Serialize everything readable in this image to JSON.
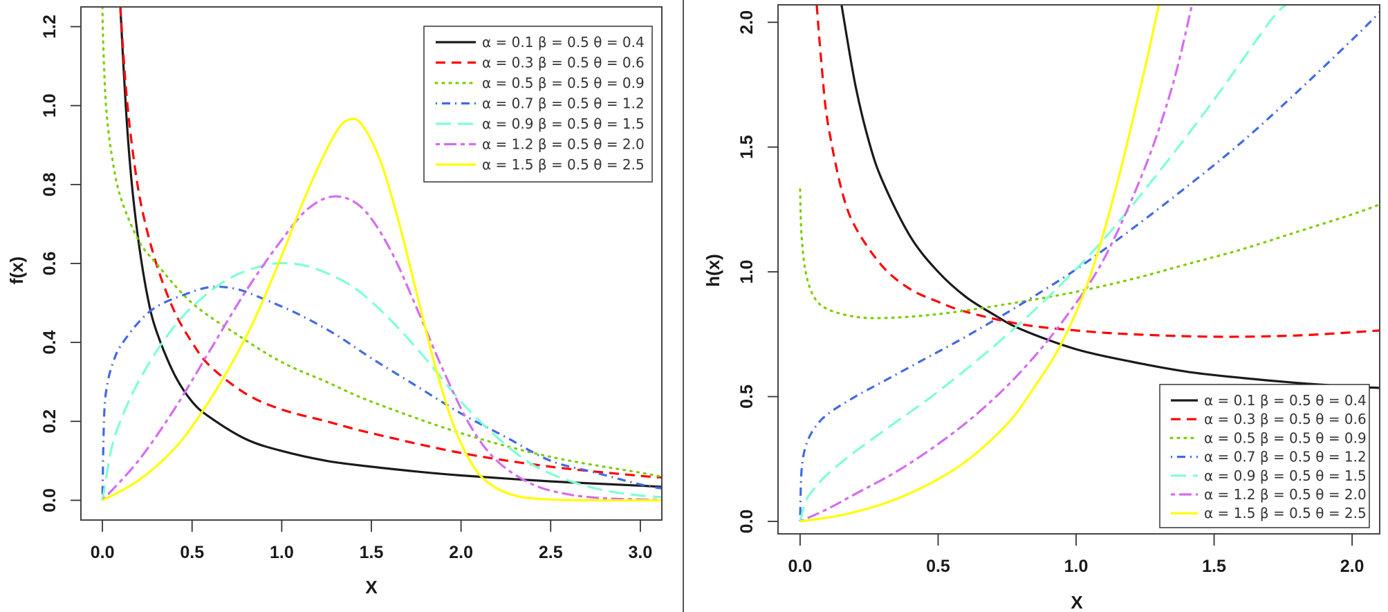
{
  "chart_data": [
    {
      "type": "line",
      "title": "",
      "xlabel": "X",
      "ylabel": "f(x)",
      "xlim": [
        -0.12,
        3.12
      ],
      "ylim": [
        -0.05,
        1.25
      ],
      "xticks": [
        "0.0",
        "0.5",
        "1.0",
        "1.5",
        "2.0",
        "2.5",
        "3.0"
      ],
      "xtick_values": [
        0,
        0.5,
        1.0,
        1.5,
        2.0,
        2.5,
        3.0
      ],
      "yticks": [
        "0.0",
        "0.2",
        "0.4",
        "0.6",
        "0.8",
        "1.0",
        "1.2"
      ],
      "ytick_values": [
        0,
        0.2,
        0.4,
        0.6,
        0.8,
        1.0,
        1.2
      ],
      "grid": false,
      "legend_position": "top-right",
      "series": [
        {
          "name": "α = 0.1  β = 0.5  θ = 0.4",
          "alpha": "0.1",
          "beta": "0.5",
          "theta": "0.4",
          "color": "#1a1a1a",
          "dash": "solid",
          "x": [
            0.1,
            0.13,
            0.16,
            0.2,
            0.25,
            0.3,
            0.4,
            0.5,
            0.6,
            0.8,
            1.0,
            1.25,
            1.5,
            1.75,
            2.0,
            2.5,
            3.0,
            3.12
          ],
          "y": [
            1.25,
            1.0,
            0.82,
            0.66,
            0.52,
            0.43,
            0.32,
            0.25,
            0.21,
            0.155,
            0.125,
            0.1,
            0.085,
            0.073,
            0.063,
            0.048,
            0.037,
            0.034
          ]
        },
        {
          "name": "α = 0.3  β = 0.5  θ = 0.6",
          "alpha": "0.3",
          "beta": "0.5",
          "theta": "0.6",
          "color": "#ff0000",
          "dash": "dashed",
          "x": [
            0.1,
            0.13,
            0.17,
            0.22,
            0.3,
            0.4,
            0.5,
            0.6,
            0.8,
            1.0,
            1.25,
            1.5,
            2.0,
            2.5,
            3.0,
            3.12
          ],
          "y": [
            1.25,
            1.05,
            0.88,
            0.74,
            0.6,
            0.48,
            0.4,
            0.34,
            0.27,
            0.23,
            0.2,
            0.17,
            0.12,
            0.085,
            0.062,
            0.058
          ]
        },
        {
          "name": "α = 0.5  β = 0.5  θ = 0.9",
          "alpha": "0.5",
          "beta": "0.5",
          "theta": "0.9",
          "color": "#7ccd00",
          "dash": "dotted",
          "x": [
            0.0,
            0.005,
            0.02,
            0.05,
            0.1,
            0.2,
            0.3,
            0.5,
            0.75,
            1.0,
            1.25,
            1.5,
            2.0,
            2.5,
            3.0,
            3.12
          ],
          "y": [
            1.25,
            1.15,
            1.0,
            0.88,
            0.77,
            0.66,
            0.6,
            0.5,
            0.42,
            0.35,
            0.3,
            0.25,
            0.17,
            0.11,
            0.07,
            0.06
          ]
        },
        {
          "name": "α = 0.7  β = 0.5  θ = 1.2",
          "alpha": "0.7",
          "beta": "0.5",
          "theta": "1.2",
          "color": "#4169e1",
          "dash": "dotdash",
          "x": [
            0.0,
            0.01,
            0.03,
            0.06,
            0.1,
            0.2,
            0.3,
            0.45,
            0.6,
            0.75,
            0.9,
            1.1,
            1.3,
            1.5,
            1.75,
            2.0,
            2.25,
            2.5,
            2.75,
            3.0,
            3.12
          ],
          "y": [
            0.0,
            0.22,
            0.3,
            0.35,
            0.39,
            0.45,
            0.49,
            0.52,
            0.54,
            0.535,
            0.51,
            0.47,
            0.42,
            0.36,
            0.29,
            0.22,
            0.16,
            0.1,
            0.07,
            0.04,
            0.03
          ]
        },
        {
          "name": "α = 0.9  β = 0.5  θ = 1.5",
          "alpha": "0.9",
          "beta": "0.5",
          "theta": "1.5",
          "color": "#7fffd4",
          "dash": "longdash",
          "x": [
            0.0,
            0.05,
            0.1,
            0.2,
            0.35,
            0.5,
            0.7,
            0.9,
            1.05,
            1.2,
            1.4,
            1.6,
            1.8,
            2.0,
            2.2,
            2.4,
            2.6,
            2.8,
            3.0,
            3.12
          ],
          "y": [
            0.0,
            0.13,
            0.2,
            0.3,
            0.41,
            0.49,
            0.56,
            0.595,
            0.6,
            0.585,
            0.54,
            0.46,
            0.36,
            0.25,
            0.16,
            0.09,
            0.05,
            0.025,
            0.012,
            0.008
          ]
        },
        {
          "name": "α = 1.2  β = 0.5  θ = 2.0",
          "alpha": "1.2",
          "beta": "0.5",
          "theta": "2.0",
          "color": "#d46cf0",
          "dash": "twodash",
          "x": [
            0.0,
            0.2,
            0.4,
            0.6,
            0.8,
            1.0,
            1.15,
            1.3,
            1.45,
            1.6,
            1.75,
            1.9,
            2.05,
            2.2,
            2.4,
            2.6,
            2.8,
            3.0,
            3.12
          ],
          "y": [
            0.0,
            0.1,
            0.23,
            0.38,
            0.53,
            0.66,
            0.74,
            0.77,
            0.74,
            0.64,
            0.49,
            0.33,
            0.19,
            0.1,
            0.04,
            0.015,
            0.005,
            0.002,
            0.001
          ]
        },
        {
          "name": "α = 1.5  β = 0.5  θ = 2.5",
          "alpha": "1.5",
          "beta": "0.5",
          "theta": "2.5",
          "color": "#ffff00",
          "dash": "solid",
          "x": [
            0.0,
            0.2,
            0.4,
            0.55,
            0.7,
            0.85,
            1.0,
            1.15,
            1.3,
            1.38,
            1.45,
            1.55,
            1.65,
            1.75,
            1.85,
            1.95,
            2.05,
            2.15,
            2.3,
            2.5,
            2.8,
            3.12
          ],
          "y": [
            0.0,
            0.05,
            0.13,
            0.22,
            0.33,
            0.46,
            0.62,
            0.79,
            0.93,
            0.965,
            0.95,
            0.86,
            0.71,
            0.53,
            0.35,
            0.2,
            0.1,
            0.045,
            0.012,
            0.002,
            0.0,
            0.0
          ]
        }
      ]
    },
    {
      "type": "line",
      "title": "",
      "xlabel": "X",
      "ylabel": "h(x)",
      "xlim": [
        -0.08,
        2.1
      ],
      "ylim": [
        -0.05,
        2.07
      ],
      "xticks": [
        "0.0",
        "0.5",
        "1.0",
        "1.5",
        "2.0"
      ],
      "xtick_values": [
        0,
        0.5,
        1.0,
        1.5,
        2.0
      ],
      "yticks": [
        "0.0",
        "0.5",
        "1.0",
        "1.5",
        "2.0"
      ],
      "ytick_values": [
        0,
        0.5,
        1.0,
        1.5,
        2.0
      ],
      "grid": false,
      "legend_position": "bottom-right",
      "series": [
        {
          "name": "α = 0.1  β = 0.5  θ = 0.4",
          "alpha": "0.1",
          "beta": "0.5",
          "theta": "0.4",
          "color": "#1a1a1a",
          "dash": "solid",
          "x": [
            0.15,
            0.2,
            0.25,
            0.3,
            0.4,
            0.5,
            0.6,
            0.7,
            0.8,
            1.0,
            1.2,
            1.4,
            1.6,
            1.8,
            2.0,
            2.1
          ],
          "y": [
            2.07,
            1.75,
            1.52,
            1.36,
            1.14,
            1.0,
            0.9,
            0.83,
            0.77,
            0.69,
            0.64,
            0.6,
            0.575,
            0.555,
            0.54,
            0.535
          ]
        },
        {
          "name": "α = 0.3  β = 0.5  θ = 0.6",
          "alpha": "0.3",
          "beta": "0.5",
          "theta": "0.6",
          "color": "#ff0000",
          "dash": "dashed",
          "x": [
            0.06,
            0.08,
            0.1,
            0.15,
            0.2,
            0.3,
            0.4,
            0.5,
            0.6,
            0.8,
            1.0,
            1.2,
            1.5,
            1.8,
            2.1
          ],
          "y": [
            2.07,
            1.8,
            1.6,
            1.33,
            1.18,
            1.02,
            0.93,
            0.88,
            0.84,
            0.79,
            0.765,
            0.75,
            0.74,
            0.745,
            0.765
          ]
        },
        {
          "name": "α = 0.5  β = 0.5  θ = 0.9",
          "alpha": "0.5",
          "beta": "0.5",
          "theta": "0.9",
          "color": "#7ccd00",
          "dash": "dotted",
          "x": [
            0.0,
            0.005,
            0.02,
            0.05,
            0.1,
            0.2,
            0.3,
            0.45,
            0.6,
            0.8,
            1.0,
            1.2,
            1.4,
            1.6,
            1.8,
            2.0,
            2.1
          ],
          "y": [
            1.33,
            1.15,
            1.0,
            0.9,
            0.85,
            0.82,
            0.815,
            0.825,
            0.845,
            0.88,
            0.92,
            0.97,
            1.03,
            1.09,
            1.16,
            1.23,
            1.27
          ]
        },
        {
          "name": "α = 0.7  β = 0.5  θ = 1.2",
          "alpha": "0.7",
          "beta": "0.5",
          "theta": "1.2",
          "color": "#4169e1",
          "dash": "dotdash",
          "x": [
            0.0,
            0.005,
            0.02,
            0.05,
            0.1,
            0.2,
            0.3,
            0.45,
            0.6,
            0.8,
            1.0,
            1.2,
            1.4,
            1.6,
            1.8,
            2.0,
            2.1
          ],
          "y": [
            0.0,
            0.2,
            0.3,
            0.37,
            0.43,
            0.5,
            0.56,
            0.65,
            0.74,
            0.87,
            1.01,
            1.17,
            1.34,
            1.52,
            1.72,
            1.93,
            2.04
          ]
        },
        {
          "name": "α = 0.9  β = 0.5  θ = 1.5",
          "alpha": "0.9",
          "beta": "0.5",
          "theta": "1.5",
          "color": "#7fffd4",
          "dash": "longdash",
          "x": [
            0.0,
            0.02,
            0.05,
            0.1,
            0.2,
            0.35,
            0.5,
            0.7,
            0.9,
            1.1,
            1.3,
            1.5,
            1.7,
            1.76
          ],
          "y": [
            0.0,
            0.08,
            0.13,
            0.19,
            0.28,
            0.4,
            0.52,
            0.7,
            0.9,
            1.13,
            1.4,
            1.69,
            2.0,
            2.07
          ]
        },
        {
          "name": "α = 1.2  β = 0.5  θ = 2.0",
          "alpha": "1.2",
          "beta": "0.5",
          "theta": "2.0",
          "color": "#d46cf0",
          "dash": "twodash",
          "x": [
            0.0,
            0.1,
            0.2,
            0.35,
            0.5,
            0.65,
            0.8,
            0.95,
            1.1,
            1.25,
            1.35,
            1.42
          ],
          "y": [
            0.0,
            0.05,
            0.11,
            0.2,
            0.31,
            0.44,
            0.6,
            0.8,
            1.05,
            1.42,
            1.75,
            2.07
          ]
        },
        {
          "name": "α = 1.5  β = 0.5  θ = 2.5",
          "alpha": "1.5",
          "beta": "0.5",
          "theta": "2.5",
          "color": "#ffff00",
          "dash": "solid",
          "x": [
            0.0,
            0.15,
            0.3,
            0.45,
            0.6,
            0.75,
            0.85,
            0.95,
            1.05,
            1.15,
            1.25,
            1.3
          ],
          "y": [
            0.0,
            0.025,
            0.07,
            0.14,
            0.24,
            0.39,
            0.54,
            0.72,
            0.98,
            1.36,
            1.82,
            2.07
          ]
        }
      ]
    }
  ]
}
